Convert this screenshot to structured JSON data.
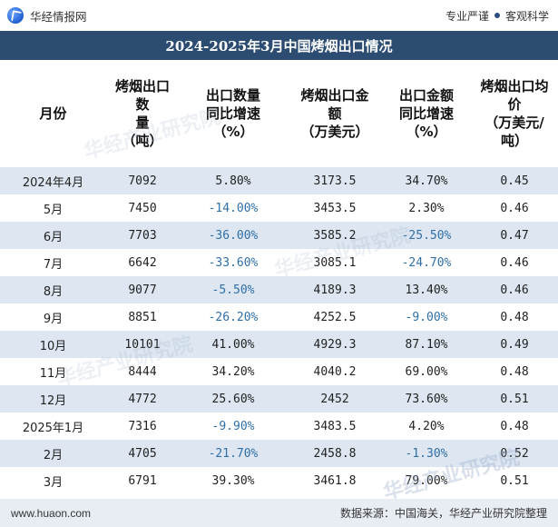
{
  "header": {
    "brand": "华经情报网",
    "tagline_left": "专业严谨",
    "tagline_right": "客观科学"
  },
  "title": "2024-2025年3月中国烤烟出口情况",
  "columns": [
    "月份",
    "烤烟出口数量（吨）",
    "出口数量同比增速（%）",
    "烤烟出口金额（万美元）",
    "出口金额同比增速（%）",
    "烤烟出口均价（万美元/吨）"
  ],
  "column_lines": [
    [
      "月份"
    ],
    [
      "烤烟出口数",
      "量",
      "（吨）"
    ],
    [
      "出口数量",
      "同比增速",
      "（%）"
    ],
    [
      "烤烟出口金",
      "额",
      "（万美元）"
    ],
    [
      "出口金额",
      "同比增速",
      "（%）"
    ],
    [
      "烤烟出口均",
      "价",
      "（万美元/",
      "吨）"
    ]
  ],
  "rows": [
    {
      "month": "2024年4月",
      "qty": "7092",
      "qty_yoy": "5.80%",
      "amt": "3173.5",
      "amt_yoy": "34.70%",
      "price": "0.45"
    },
    {
      "month": "5月",
      "qty": "7450",
      "qty_yoy": "-14.00%",
      "amt": "3453.5",
      "amt_yoy": "2.30%",
      "price": "0.46"
    },
    {
      "month": "6月",
      "qty": "7703",
      "qty_yoy": "-36.00%",
      "amt": "3585.2",
      "amt_yoy": "-25.50%",
      "price": "0.47"
    },
    {
      "month": "7月",
      "qty": "6642",
      "qty_yoy": "-33.60%",
      "amt": "3085.1",
      "amt_yoy": "-24.70%",
      "price": "0.46"
    },
    {
      "month": "8月",
      "qty": "9077",
      "qty_yoy": "-5.50%",
      "amt": "4189.3",
      "amt_yoy": "13.40%",
      "price": "0.46"
    },
    {
      "month": "9月",
      "qty": "8851",
      "qty_yoy": "-26.20%",
      "amt": "4252.5",
      "amt_yoy": "-9.00%",
      "price": "0.48"
    },
    {
      "month": "10月",
      "qty": "10101",
      "qty_yoy": "41.00%",
      "amt": "4929.3",
      "amt_yoy": "87.10%",
      "price": "0.49"
    },
    {
      "month": "11月",
      "qty": "8444",
      "qty_yoy": "34.20%",
      "amt": "4040.2",
      "amt_yoy": "69.00%",
      "price": "0.48"
    },
    {
      "month": "12月",
      "qty": "4772",
      "qty_yoy": "25.60%",
      "amt": "2452",
      "amt_yoy": "73.60%",
      "price": "0.51"
    },
    {
      "month": "2025年1月",
      "qty": "7316",
      "qty_yoy": "-9.90%",
      "amt": "3483.5",
      "amt_yoy": "4.20%",
      "price": "0.48"
    },
    {
      "month": "2月",
      "qty": "4705",
      "qty_yoy": "-21.70%",
      "amt": "2458.8",
      "amt_yoy": "-1.30%",
      "price": "0.52"
    },
    {
      "month": "3月",
      "qty": "6791",
      "qty_yoy": "39.30%",
      "amt": "3461.8",
      "amt_yoy": "79.00%",
      "price": "0.51"
    }
  ],
  "watermark": "华经产业研究院",
  "footer": {
    "url": "www.huaon.com",
    "source": "数据来源：中国海关，华经产业研究院整理"
  },
  "colors": {
    "title_bg": "#2c4c72",
    "stripe": "#dde6f1",
    "negative_text": "#2f6fa8",
    "footer_bg": "#e8edf4"
  }
}
